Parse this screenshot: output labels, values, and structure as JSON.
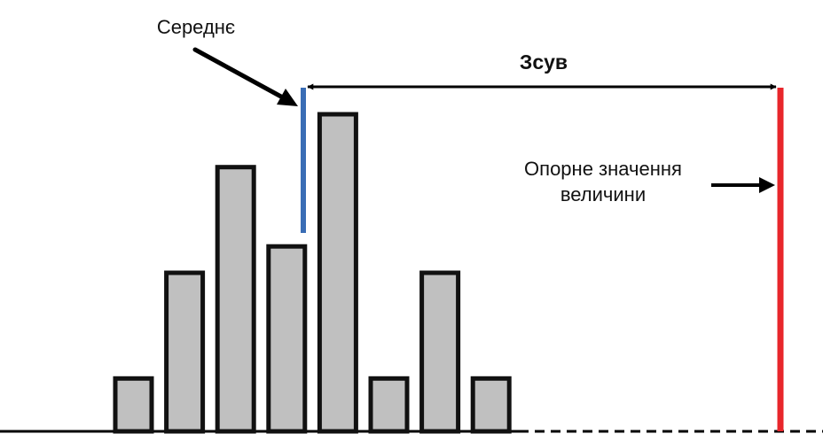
{
  "labels": {
    "mean": "Середнє",
    "bias": "Зсув",
    "reference_line1": "Опорне значення",
    "reference_line2": "величини"
  },
  "histogram": {
    "bar_values": [
      1,
      3,
      5,
      3.5,
      6,
      1,
      3,
      1
    ]
  },
  "colors": {
    "bar_fill": "#c0c0c0",
    "bar_stroke": "#111111",
    "mean_line": "#3a6db5",
    "reference_line": "#e8262b",
    "arrow": "#000000"
  }
}
